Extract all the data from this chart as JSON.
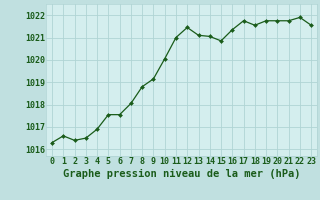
{
  "x": [
    0,
    1,
    2,
    3,
    4,
    5,
    6,
    7,
    8,
    9,
    10,
    11,
    12,
    13,
    14,
    15,
    16,
    17,
    18,
    19,
    20,
    21,
    22,
    23
  ],
  "y": [
    1016.3,
    1016.6,
    1016.4,
    1016.5,
    1016.9,
    1017.55,
    1017.55,
    1018.05,
    1018.8,
    1019.15,
    1020.05,
    1021.0,
    1021.45,
    1021.1,
    1021.05,
    1020.85,
    1021.35,
    1021.75,
    1021.55,
    1021.75,
    1021.75,
    1021.75,
    1021.9,
    1021.55
  ],
  "ylim": [
    1015.7,
    1022.5
  ],
  "yticks": [
    1016,
    1017,
    1018,
    1019,
    1020,
    1021,
    1022
  ],
  "xticks": [
    0,
    1,
    2,
    3,
    4,
    5,
    6,
    7,
    8,
    9,
    10,
    11,
    12,
    13,
    14,
    15,
    16,
    17,
    18,
    19,
    20,
    21,
    22,
    23
  ],
  "line_color": "#1a5c1a",
  "marker_color": "#1a5c1a",
  "bg_plot": "#d4eeee",
  "bg_fig": "#c0e0e0",
  "grid_color": "#b0d4d4",
  "xlabel": "Graphe pression niveau de la mer (hPa)",
  "xlabel_color": "#1a5c1a",
  "tick_color": "#1a5c1a",
  "font_size_label": 7.5,
  "font_size_tick": 6.0
}
